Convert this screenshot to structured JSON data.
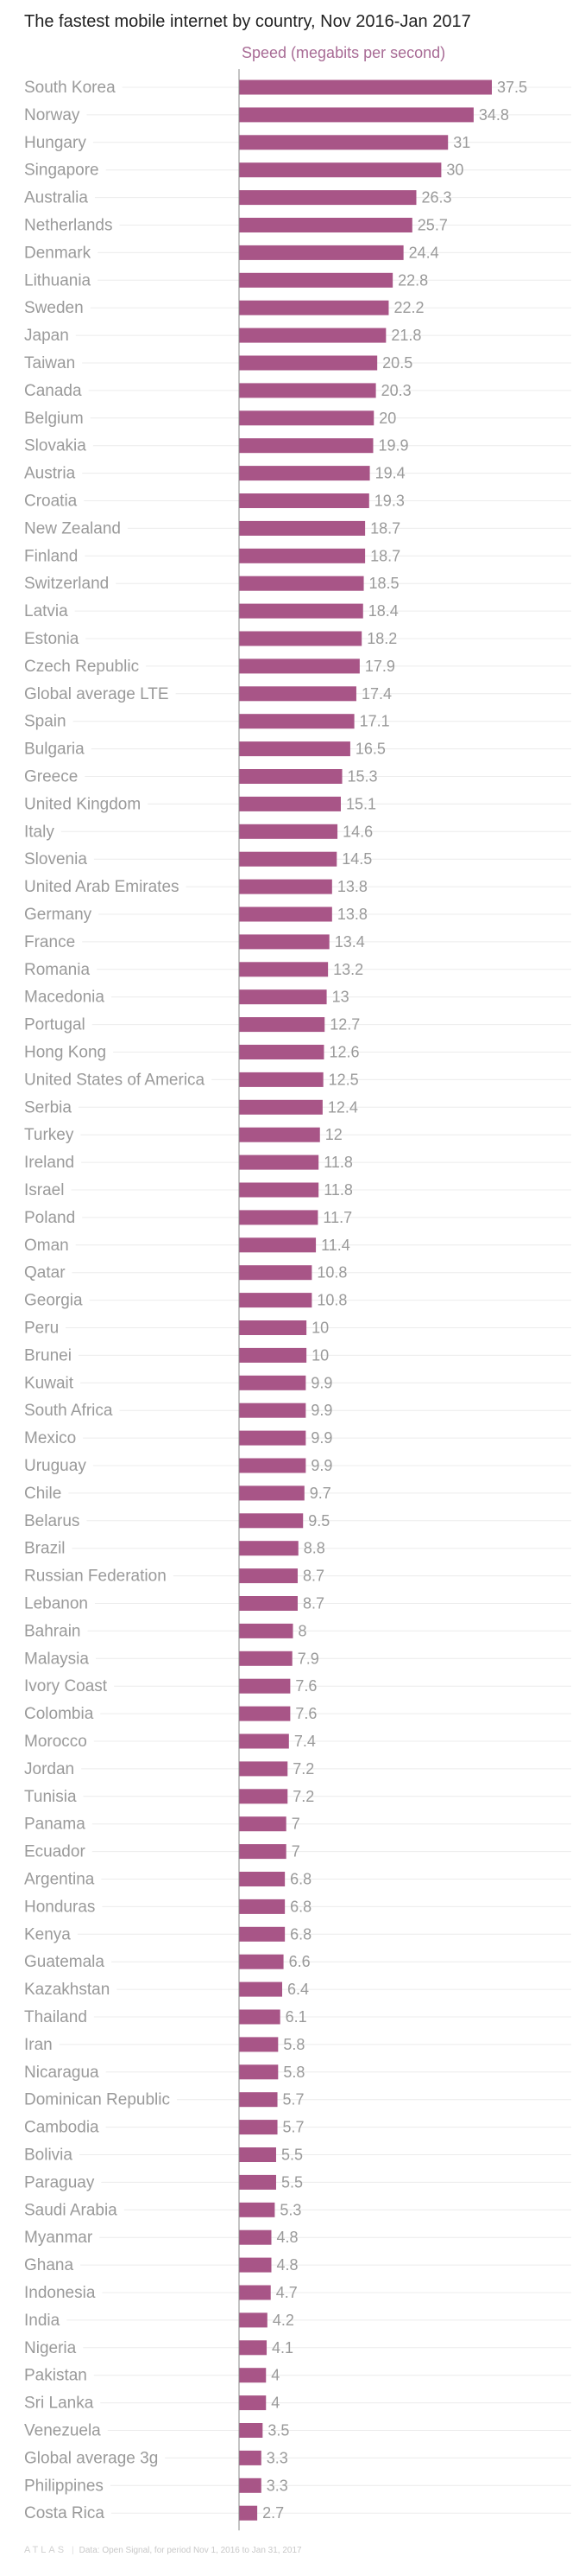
{
  "chart_data": {
    "type": "bar",
    "orientation": "horizontal",
    "title": "The fastest mobile internet by country, Nov 2016-Jan 2017",
    "xlabel": "Speed (megabits per second)",
    "ylabel": "",
    "xlim": [
      0,
      48
    ],
    "bar_color": "#a85587",
    "categories": [
      "South Korea",
      "Norway",
      "Hungary",
      "Singapore",
      "Australia",
      "Netherlands",
      "Denmark",
      "Lithuania",
      "Sweden",
      "Japan",
      "Taiwan",
      "Canada",
      "Belgium",
      "Slovakia",
      "Austria",
      "Croatia",
      "New Zealand",
      "Finland",
      "Switzerland",
      "Latvia",
      "Estonia",
      "Czech Republic",
      "Global average LTE",
      "Spain",
      "Bulgaria",
      "Greece",
      "United Kingdom",
      "Italy",
      "Slovenia",
      "United Arab Emirates",
      "Germany",
      "France",
      "Romania",
      "Macedonia",
      "Portugal",
      "Hong Kong",
      "United States of America",
      "Serbia",
      "Turkey",
      "Ireland",
      "Israel",
      "Poland",
      "Oman",
      "Qatar",
      "Georgia",
      "Peru",
      "Brunei",
      "Kuwait",
      "South Africa",
      "Mexico",
      "Uruguay",
      "Chile",
      "Belarus",
      "Brazil",
      "Russian Federation",
      "Lebanon",
      "Bahrain",
      "Malaysia",
      "Ivory Coast",
      "Colombia",
      "Morocco",
      "Jordan",
      "Tunisia",
      "Panama",
      "Ecuador",
      "Argentina",
      "Honduras",
      "Kenya",
      "Guatemala",
      "Kazakhstan",
      "Thailand",
      "Iran",
      "Nicaragua",
      "Dominican Republic",
      "Cambodia",
      "Bolivia",
      "Paraguay",
      "Saudi Arabia",
      "Myanmar",
      "Ghana",
      "Indonesia",
      "India",
      "Nigeria",
      "Pakistan",
      "Sri Lanka",
      "Venezuela",
      "Global average 3g",
      "Philippines",
      "Costa Rica"
    ],
    "values": [
      37.5,
      34.8,
      31,
      30,
      26.3,
      25.7,
      24.4,
      22.8,
      22.2,
      21.8,
      20.5,
      20.3,
      20,
      19.9,
      19.4,
      19.3,
      18.7,
      18.7,
      18.5,
      18.4,
      18.2,
      17.9,
      17.4,
      17.1,
      16.5,
      15.3,
      15.1,
      14.6,
      14.5,
      13.8,
      13.8,
      13.4,
      13.2,
      13,
      12.7,
      12.6,
      12.5,
      12.4,
      12,
      11.8,
      11.8,
      11.7,
      11.4,
      10.8,
      10.8,
      10,
      10,
      9.9,
      9.9,
      9.9,
      9.9,
      9.7,
      9.5,
      8.8,
      8.7,
      8.7,
      8,
      7.9,
      7.6,
      7.6,
      7.4,
      7.2,
      7.2,
      7,
      7,
      6.8,
      6.8,
      6.8,
      6.6,
      6.4,
      6.1,
      5.8,
      5.8,
      5.7,
      5.7,
      5.5,
      5.5,
      5.3,
      4.8,
      4.8,
      4.7,
      4.2,
      4.1,
      4,
      4,
      3.5,
      3.3,
      3.3,
      2.7
    ],
    "grid": true,
    "legend": "none"
  },
  "footer": {
    "logo": "ATLAS",
    "source": "Data:  Open Signal, for period Nov 1, 2016 to Jan 31, 2017"
  }
}
